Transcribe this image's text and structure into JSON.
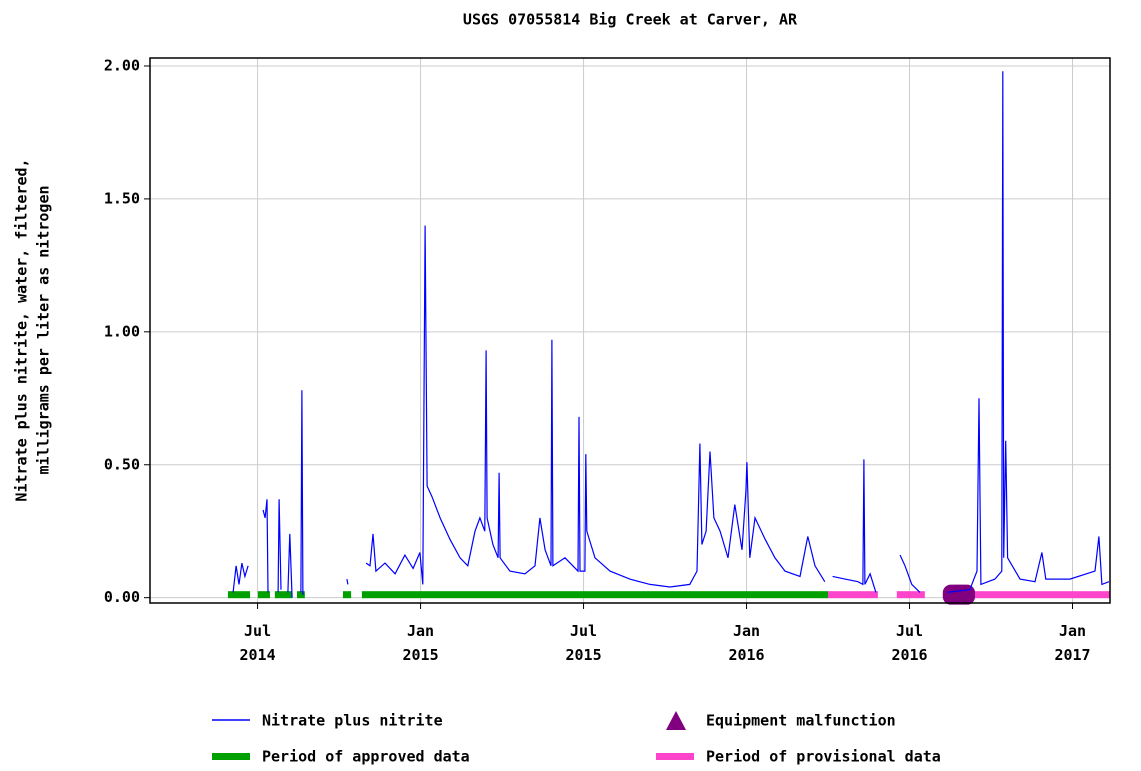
{
  "chart_data": {
    "type": "line",
    "title": "USGS 07055814 Big Creek at Carver, AR",
    "ylabel": [
      "Nitrate plus nitrite, water, filtered,",
      "milligrams per liter as nitrogen"
    ],
    "xlim": [
      2014.17,
      2017.115
    ],
    "xticks": [
      {
        "value": 2014.5,
        "label": "Jul 2014"
      },
      {
        "value": 2015.0,
        "label": "Jan 2015"
      },
      {
        "value": 2015.5,
        "label": "Jul 2015"
      },
      {
        "value": 2016.0,
        "label": "Jan 2016"
      },
      {
        "value": 2016.5,
        "label": "Jul 2016"
      },
      {
        "value": 2017.0,
        "label": "Jan 2017"
      }
    ],
    "ylim": [
      -0.02,
      2.03
    ],
    "yticks": [
      {
        "value": 0,
        "label": "0.00"
      },
      {
        "value": 0.5,
        "label": "0.50"
      },
      {
        "value": 1,
        "label": "1.00"
      },
      {
        "value": 1.5,
        "label": "1.50"
      },
      {
        "value": 2,
        "label": "2.00"
      }
    ],
    "grid": true,
    "x": [
      2014.425,
      2014.434,
      2014.443,
      2014.452,
      2014.461,
      2014.471,
      2014.48,
      2014.517,
      2014.523,
      2014.529,
      2014.532,
      2014.54,
      2014.563,
      2014.566,
      2014.572,
      2014.58,
      2014.593,
      2014.599,
      2014.606,
      2014.615,
      2014.633,
      2014.636,
      2014.639,
      2014.7,
      2014.774,
      2014.777,
      2014.8,
      2014.833,
      2014.845,
      2014.854,
      2014.863,
      2014.891,
      2014.922,
      2014.952,
      2014.977,
      2014.998,
      2015.007,
      2015.014,
      2015.02,
      2015.035,
      2015.06,
      2015.09,
      2015.121,
      2015.145,
      2015.167,
      2015.182,
      2015.197,
      2015.201,
      2015.204,
      2015.222,
      2015.238,
      2015.241,
      2015.244,
      2015.274,
      2015.32,
      2015.351,
      2015.366,
      2015.382,
      2015.4,
      2015.403,
      2015.406,
      2015.443,
      2015.483,
      2015.486,
      2015.489,
      2015.504,
      2015.507,
      2015.51,
      2015.535,
      2015.581,
      2015.642,
      2015.704,
      2015.765,
      2015.826,
      2015.848,
      2015.857,
      2015.863,
      2015.876,
      2015.888,
      2015.9,
      2015.919,
      2015.943,
      2015.964,
      2015.986,
      2015.998,
      2016.001,
      2016.01,
      2016.026,
      2016.057,
      2016.087,
      2016.118,
      2016.164,
      2016.188,
      2016.21,
      2016.24,
      2016.26,
      2016.264,
      2016.302,
      2016.342,
      2016.357,
      2016.36,
      2016.363,
      2016.379,
      2016.397,
      2016.43,
      2016.471,
      2016.486,
      2016.507,
      2016.532,
      2016.58,
      2016.615,
      2016.685,
      2016.707,
      2016.713,
      2016.719,
      2016.762,
      2016.783,
      2016.786,
      2016.789,
      2016.795,
      2016.801,
      2016.839,
      2016.885,
      2016.906,
      2016.918,
      2016.992,
      2017.069,
      2017.081,
      2017.09,
      2017.112
    ],
    "series": [
      {
        "name": "Nitrate plus nitrite",
        "color": "#0000ff",
        "values": [
          0.02,
          0.12,
          0.05,
          0.13,
          0.08,
          0.12,
          null,
          0.33,
          0.3,
          0.37,
          0.02,
          null,
          0.02,
          0.37,
          0.03,
          null,
          0.02,
          0.24,
          0.0,
          null,
          0.02,
          0.78,
          0.01,
          null,
          0.07,
          0.05,
          null,
          0.13,
          0.12,
          0.24,
          0.1,
          0.13,
          0.09,
          0.16,
          0.11,
          0.17,
          0.05,
          1.4,
          0.42,
          0.38,
          0.3,
          0.22,
          0.15,
          0.12,
          0.25,
          0.3,
          0.25,
          0.93,
          0.3,
          0.2,
          0.15,
          0.47,
          0.15,
          0.1,
          0.09,
          0.12,
          0.3,
          0.18,
          0.12,
          0.97,
          0.12,
          0.15,
          0.1,
          0.68,
          0.1,
          0.1,
          0.54,
          0.25,
          0.15,
          0.1,
          0.07,
          0.05,
          0.04,
          0.05,
          0.1,
          0.58,
          0.2,
          0.25,
          0.55,
          0.3,
          0.25,
          0.15,
          0.35,
          0.18,
          0.4,
          0.51,
          0.15,
          0.3,
          0.22,
          0.15,
          0.1,
          0.08,
          0.23,
          0.12,
          0.06,
          null,
          0.08,
          0.07,
          0.06,
          0.05,
          0.52,
          0.05,
          0.09,
          0.02,
          null,
          0.16,
          0.12,
          0.05,
          0.02,
          null,
          0.02,
          0.03,
          0.1,
          0.75,
          0.05,
          0.07,
          0.1,
          1.98,
          0.15,
          0.59,
          0.15,
          0.07,
          0.06,
          0.17,
          0.07,
          0.07,
          0.1,
          0.23,
          0.05,
          0.06
        ]
      }
    ],
    "periods": [
      {
        "name": "Period of approved data",
        "color": "#00a000",
        "ranges": [
          [
            2014.409,
            2014.477
          ],
          [
            2014.501,
            2014.538
          ],
          [
            2014.553,
            2014.606
          ],
          [
            2014.621,
            2014.645
          ],
          [
            2014.762,
            2014.787
          ],
          [
            2014.82,
            2016.25
          ]
        ]
      },
      {
        "name": "Period of provisional data",
        "color": "#ff44cc",
        "ranges": [
          [
            2016.25,
            2016.403
          ],
          [
            2016.461,
            2016.547
          ],
          [
            2016.618,
            2017.115
          ]
        ]
      },
      {
        "name": "Equipment malfunction",
        "color": "#800080",
        "ranges": [
          [
            2016.602,
            2016.701
          ]
        ]
      }
    ]
  }
}
